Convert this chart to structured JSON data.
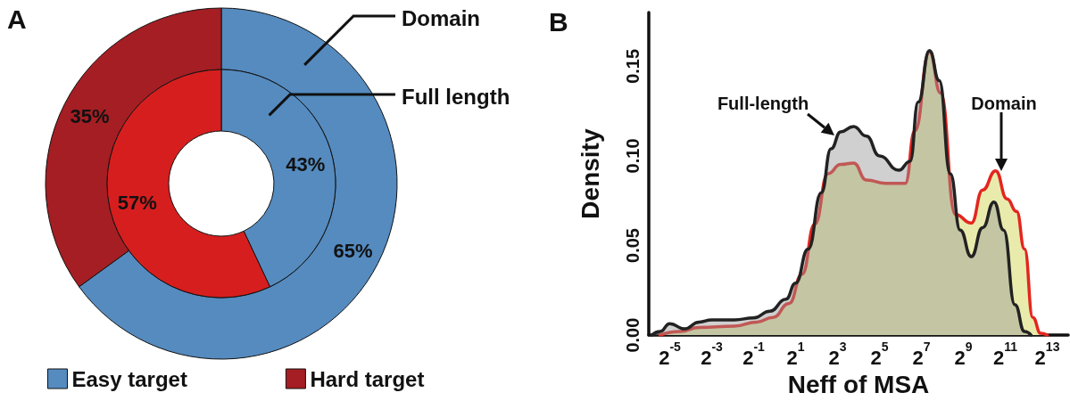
{
  "chart_data": [
    {
      "type": "donut",
      "title": "A",
      "categories": [
        "Easy target",
        "Hard target"
      ],
      "series": [
        {
          "name": "Domain",
          "values": [
            65,
            35
          ],
          "value_labels": [
            "65%",
            "35%"
          ],
          "colors": [
            "#558bbf",
            "#a51e23"
          ]
        },
        {
          "name": "Full length",
          "values": [
            43,
            57
          ],
          "value_labels": [
            "43%",
            "57%"
          ],
          "colors": [
            "#558bbf",
            "#d71e1e"
          ]
        }
      ],
      "legend": "bottom"
    },
    {
      "type": "area",
      "title": "B",
      "xlabel": "Neff of MSA",
      "ylabel": "Density",
      "log": "x",
      "xlim": [
        0.015625,
        16384
      ],
      "ylim": [
        0,
        0.18
      ],
      "xticks": [
        {
          "value": 0.03125,
          "label": "2$^{-5}$"
        },
        {
          "value": 0.125,
          "label": "2$^{-3}$"
        },
        {
          "value": 0.5,
          "label": "2$^{-1}$"
        },
        {
          "value": 2,
          "label": "2$^{1}$"
        },
        {
          "value": 8,
          "label": "2$^{3}$"
        },
        {
          "value": 32,
          "label": "2$^{5}$"
        },
        {
          "value": 128,
          "label": "2$^{7}$"
        },
        {
          "value": 512,
          "label": "2$^{9}$"
        },
        {
          "value": 2048,
          "label": "2$^{11}$"
        },
        {
          "value": 8192,
          "label": "2$^{13}$"
        }
      ],
      "yticks": [
        {
          "value": 0,
          "label": "0.00"
        },
        {
          "value": 0.05,
          "label": "0.05"
        },
        {
          "value": 0.1,
          "label": "0.10"
        },
        {
          "value": 0.15,
          "label": "0.15"
        }
      ],
      "grid": false,
      "marker": "none",
      "series": [
        {
          "color": "#e3261f",
          "x": [
            0.0227,
            0.043,
            0.0825,
            0.264,
            0.555,
            0.946,
            1.613,
            2.48,
            3.78,
            5.82,
            8.88,
            13.6,
            20.8,
            39.4,
            75.1,
            103,
            167,
            242,
            393,
            666,
            969,
            1489,
            2165,
            2978,
            3875,
            5078,
            6606,
            8192
          ],
          "values": [
            0,
            0.002,
            0.0043,
            0.005,
            0.0073,
            0.0099,
            0.0177,
            0.034,
            0.062,
            0.09,
            0.0952,
            0.096,
            0.0865,
            0.0847,
            0.0847,
            0.114,
            0.158,
            0.135,
            0.0673,
            0.0625,
            0.081,
            0.0917,
            0.076,
            0.069,
            0.048,
            0.0099,
            0.001,
            0
          ]
        },
        {
          "color": "#222222",
          "x": [
            0.0173,
            0.0227,
            0.03125,
            0.0508,
            0.0825,
            0.125,
            0.264,
            0.5,
            0.853,
            1.454,
            2,
            3.03,
            4.69,
            6.45,
            8.88,
            13.6,
            20.8,
            32,
            60.5,
            88,
            115,
            167,
            231,
            333,
            461,
            666,
            969,
            1409,
            1938,
            2817,
            3875,
            4804
          ],
          "values": [
            0,
            0.002,
            0.0064,
            0.0035,
            0.0073,
            0.0085,
            0.0085,
            0.0096,
            0.0134,
            0.02,
            0.029,
            0.048,
            0.0795,
            0.104,
            0.1134,
            0.1164,
            0.111,
            0.1,
            0.092,
            0.097,
            0.13,
            0.1587,
            0.142,
            0.09,
            0.0586,
            0.0438,
            0.06,
            0.0743,
            0.0586,
            0.0169,
            0.002,
            0
          ]
        }
      ],
      "annotations": [
        "Full-length",
        "Domain"
      ]
    }
  ]
}
